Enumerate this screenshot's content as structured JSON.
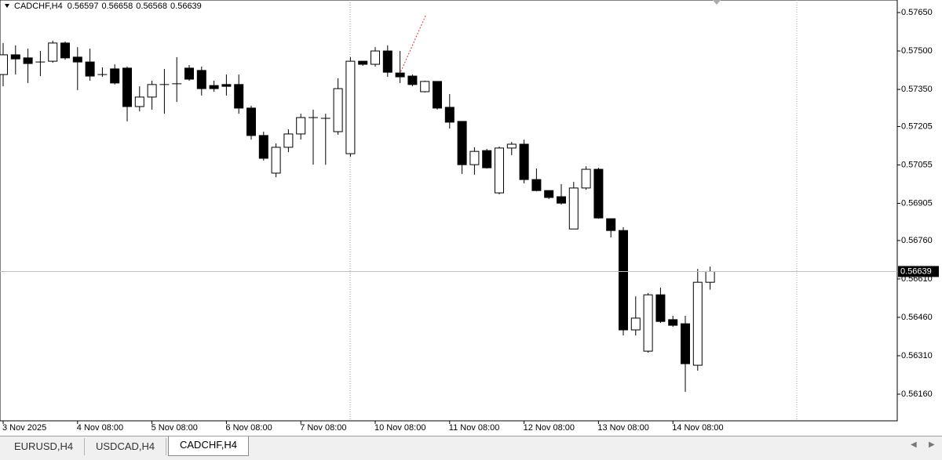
{
  "chart_data": {
    "type": "candlestick",
    "title": "CADCHF,H4",
    "categories": [
      "3 Nov 2025",
      null,
      null,
      null,
      null,
      null,
      "4 Nov 08:00",
      null,
      null,
      null,
      null,
      null,
      "5 Nov 08:00",
      null,
      null,
      null,
      null,
      null,
      "6 Nov 08:00",
      null,
      null,
      null,
      null,
      null,
      "7 Nov 08:00",
      null,
      null,
      null,
      null,
      null,
      "10 Nov 08:00",
      null,
      null,
      null,
      null,
      null,
      "11 Nov 08:00",
      null,
      null,
      null,
      null,
      null,
      "12 Nov 08:00",
      null,
      null,
      null,
      null,
      null,
      "13 Nov 08:00",
      null,
      null,
      null,
      null,
      null,
      "14 Nov 08:00",
      null,
      null,
      null
    ],
    "open": [
      0.57408,
      0.57485,
      0.57473,
      0.57457,
      0.5746,
      0.57531,
      0.57476,
      0.57457,
      0.57408,
      0.5743,
      0.57433,
      0.57283,
      0.5732,
      0.57369,
      0.57372,
      0.57433,
      0.57424,
      0.57365,
      0.57369,
      0.57369,
      0.57277,
      0.5717,
      0.57023,
      0.57124,
      0.57176,
      0.5724,
      0.57237,
      0.57185,
      0.57099,
      0.5746,
      0.57448,
      0.575,
      0.57414,
      0.57402,
      0.57341,
      0.57381,
      0.5728,
      0.57225,
      0.57056,
      0.57111,
      0.56946,
      0.57121,
      0.57136,
      0.56998,
      0.56955,
      0.56931,
      0.56805,
      0.56965,
      0.57038,
      0.56845,
      0.56799,
      0.56411,
      0.56328,
      0.56548,
      0.56451,
      0.56435,
      0.56273,
      0.56597
    ],
    "high": [
      0.57531,
      0.57522,
      0.57509,
      0.575,
      0.5754,
      0.57537,
      0.57515,
      0.57509,
      0.57436,
      0.57448,
      0.57439,
      0.57362,
      0.57384,
      0.5743,
      0.57476,
      0.57445,
      0.57439,
      0.57384,
      0.57408,
      0.57408,
      0.57286,
      0.57185,
      0.57139,
      0.57194,
      0.57255,
      0.57271,
      0.57255,
      0.57393,
      0.57476,
      0.5746,
      0.57515,
      0.57522,
      0.575,
      0.57408,
      0.57384,
      0.57381,
      0.57332,
      0.57225,
      0.57124,
      0.57118,
      0.57127,
      0.57145,
      0.57154,
      0.57041,
      0.56955,
      0.5698,
      0.56989,
      0.5705,
      0.57044,
      0.56845,
      0.56812,
      0.56542,
      0.56555,
      0.56576,
      0.56466,
      0.56466,
      0.56649,
      0.56658
    ],
    "low": [
      0.57362,
      0.57408,
      0.57375,
      0.57402,
      0.57454,
      0.57466,
      0.57347,
      0.57384,
      0.57399,
      0.57369,
      0.57225,
      0.57264,
      0.57271,
      0.57255,
      0.57301,
      0.57384,
      0.57326,
      0.57341,
      0.57326,
      0.57255,
      0.57154,
      0.57072,
      0.57007,
      0.57105,
      0.57154,
      0.57056,
      0.57056,
      0.57173,
      0.57087,
      0.57442,
      0.57439,
      0.57399,
      0.57375,
      0.57362,
      0.57338,
      0.57271,
      0.57197,
      0.5702,
      0.57017,
      0.57041,
      0.5694,
      0.57093,
      0.56983,
      0.56952,
      0.56922,
      0.569,
      0.56805,
      0.56958,
      0.56845,
      0.56772,
      0.56389,
      0.56389,
      0.56322,
      0.56438,
      0.56423,
      0.56169,
      0.56252,
      0.56568
    ],
    "close": [
      0.57485,
      0.57469,
      0.57451,
      0.5746,
      0.57531,
      0.57473,
      0.57457,
      0.57402,
      0.57405,
      0.57375,
      0.57283,
      0.5732,
      0.57369,
      0.57372,
      0.57369,
      0.5739,
      0.57353,
      0.57353,
      0.57362,
      0.57277,
      0.5717,
      0.57081,
      0.57124,
      0.57176,
      0.5724,
      0.57237,
      0.5724,
      0.57353,
      0.5746,
      0.57448,
      0.575,
      0.57417,
      0.57399,
      0.57369,
      0.57381,
      0.57277,
      0.57222,
      0.57056,
      0.57108,
      0.57044,
      0.57121,
      0.57136,
      0.56998,
      0.56955,
      0.56928,
      0.56906,
      0.56965,
      0.57038,
      0.56848,
      0.56799,
      0.56411,
      0.56457,
      0.56548,
      0.56444,
      0.56429,
      0.56279,
      0.56597,
      0.56639
    ],
    "ylim": [
      0.56056,
      0.57699
    ],
    "yticks": [
      {
        "value": 0.5765,
        "label": "0.57650"
      },
      {
        "value": 0.575,
        "label": "0.57500"
      },
      {
        "value": 0.5735,
        "label": "0.57350"
      },
      0.57205,
      0.57055,
      0.56905,
      {
        "value": 0.5676,
        "label": "0.56760"
      },
      {
        "value": 0.5661,
        "label": "0.56610"
      },
      {
        "value": 0.5646,
        "label": "0.56460"
      },
      {
        "value": 0.5631,
        "label": "0.56310"
      },
      {
        "value": 0.5616,
        "label": "0.56160"
      }
    ],
    "up_color": "#ffffff",
    "down_color": "#000000",
    "grid": false
  },
  "tabs": [
    "EURUSD,H4",
    "USDCAD,H4",
    "CADCHF,H4"
  ]
}
